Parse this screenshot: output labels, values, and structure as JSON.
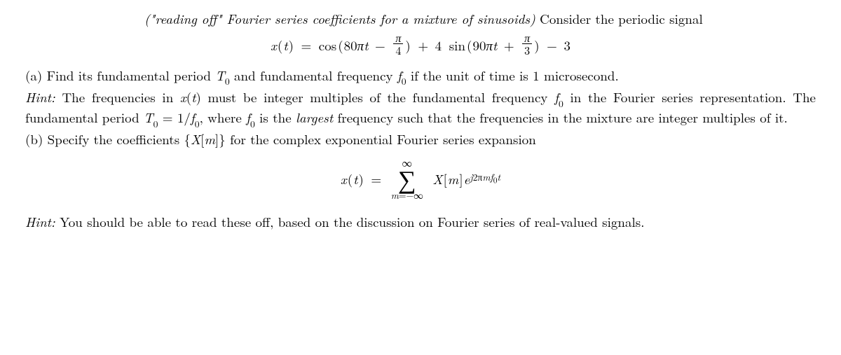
{
  "intro": {
    "lead_italic": "(\"reading off\" Fourier series coefficients for a mixture of sinusoids)",
    "lead_tail": " Consider the periodic signal"
  },
  "eq1": {
    "lhs_var": "x",
    "lhs_arg": "t",
    "eq": "=",
    "term1_fn": "cos",
    "term1_coef": "80",
    "term1_pi": "π",
    "term1_var": "t",
    "term1_minus": "−",
    "term1_frac_num": "π",
    "term1_frac_den": "4",
    "plus": "+",
    "term2_amp": "4",
    "term2_fn": "sin",
    "term2_coef": "90",
    "term2_pi": "π",
    "term2_var": "t",
    "term2_plus": "+",
    "term2_frac_num": "π",
    "term2_frac_den": "3",
    "minus": "−",
    "const": "3"
  },
  "part_a": {
    "label": "(a)",
    "text1": " Find its fundamental period ",
    "T0": "T",
    "T0sub": "0",
    "text2": " and fundamental frequency ",
    "f0": "f",
    "f0sub": "0",
    "text3": " if the unit of time is 1 microsecond."
  },
  "hint_a": {
    "label": "Hint:",
    "text1": " The frequencies in ",
    "xt": "x",
    "xt_arg": "t",
    "text2": " must be integer multiples of the fundamental frequency ",
    "f0": "f",
    "f0sub": "0",
    "text3": " in the Fourier series representation.  The fundamental period ",
    "T0": "T",
    "T0sub": "0",
    "eq": " = 1/",
    "f0b": "f",
    "f0bsub": "0",
    "text4": ", where ",
    "f0c": "f",
    "f0csub": "0",
    "text5": " is the ",
    "largest": "largest",
    "text6": " frequency such that the frequencies in the mixture are integer multiples of it."
  },
  "part_b": {
    "label": "(b)",
    "text1": " Specify the coefficients {",
    "Xm": "X",
    "Xm_arg": "m",
    "text2": "} for the complex exponential Fourier series expansion"
  },
  "eq2": {
    "lhs_var": "x",
    "lhs_arg": "t",
    "eq": "=",
    "sum_top": "∞",
    "sum_sym": "∑",
    "sum_bot_var": "m",
    "sum_bot_eq": "=",
    "sum_bot_neg": "−∞",
    "X": "X",
    "m": "m",
    "e": "e",
    "exp_j": "j",
    "exp_2pi": "2π",
    "exp_m": "m",
    "exp_f": "f",
    "exp_0": "0",
    "exp_t": "t"
  },
  "hint_b": {
    "label": "Hint:",
    "text": " You should be able to read these off, based on the discussion on Fourier series of real-valued signals."
  }
}
